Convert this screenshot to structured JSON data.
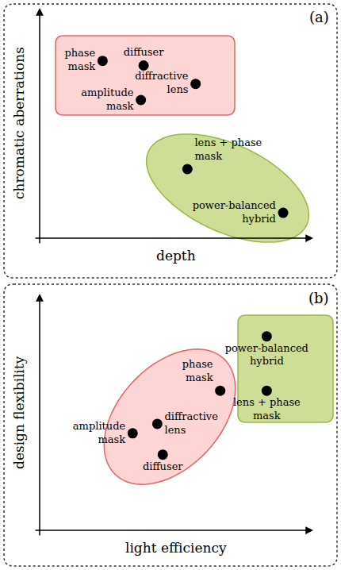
{
  "chart_data": [
    {
      "type": "scatter",
      "panel_label": "(a)",
      "x_label": "depth",
      "y_label": "chromatic aberrations",
      "xlim": [
        0,
        10
      ],
      "ylim": [
        0,
        10
      ],
      "tick_labels": false,
      "series": [
        {
          "color": "#fdd5d5",
          "labels": [
            "phase\nmask",
            "diffuser",
            "diffractive\nlens",
            "amplitude\nmask"
          ],
          "x": [
            2.3,
            3.8,
            5.7,
            3.7
          ],
          "y": [
            7.7,
            7.5,
            6.7,
            6.0
          ]
        },
        {
          "color": "#cfde97",
          "labels": [
            "lens + phase\nmask",
            "power-balanced\nhybrid"
          ],
          "x": [
            5.4,
            8.9
          ],
          "y": [
            3.0,
            1.1
          ]
        }
      ]
    },
    {
      "type": "scatter",
      "panel_label": "(b)",
      "x_label": "light efficiency",
      "y_label": "design flexibility",
      "xlim": [
        0,
        10
      ],
      "ylim": [
        0,
        10
      ],
      "tick_labels": false,
      "series": [
        {
          "color": "#fdd5d5",
          "labels": [
            "phase\nmask",
            "diffractive\nlens",
            "amplitude\nmask",
            "diffuser"
          ],
          "x": [
            6.6,
            4.3,
            3.4,
            4.5
          ],
          "y": [
            5.9,
            4.5,
            4.1,
            3.2
          ]
        },
        {
          "color": "#cfde97",
          "labels": [
            "power-balanced\nhybrid",
            "lens + phase\nmask"
          ],
          "x": [
            8.3,
            8.3
          ],
          "y": [
            8.2,
            5.9
          ]
        }
      ]
    }
  ]
}
